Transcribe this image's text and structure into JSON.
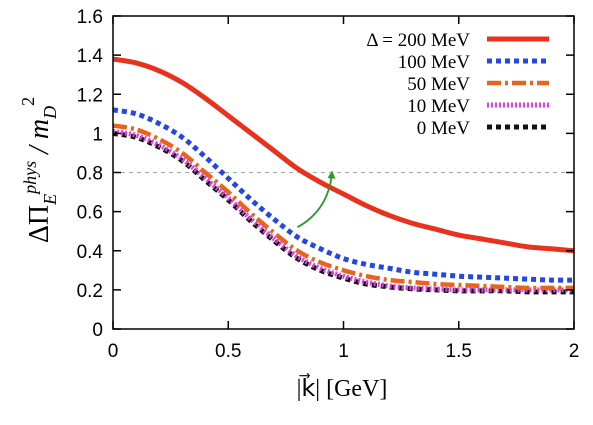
{
  "chart_data": {
    "type": "line",
    "xlabel": "|k⃗|  [GeV]",
    "ylabel": {
      "delta": "ΔΠ",
      "sub": "E",
      "sup": "phys",
      "slash": " / m",
      "sub2": "D",
      "sup2": "2"
    },
    "xlim": [
      0,
      2
    ],
    "ylim": [
      0,
      1.6
    ],
    "x_ticks": [
      "0",
      "0.5",
      "1",
      "1.5",
      "2"
    ],
    "y_ticks": [
      "0",
      "0.2",
      "0.4",
      "0.6",
      "0.8",
      "1",
      "1.2",
      "1.4",
      "1.6"
    ],
    "legend_position": "top-right",
    "reference_line": {
      "y": 0.8,
      "style": "dashed",
      "color": "#aaaaaa"
    },
    "annotation_arrow": {
      "from": [
        0.8,
        0.52
      ],
      "to": [
        0.95,
        0.8
      ],
      "color": "#2a9a2a"
    },
    "x": [
      0,
      0.1,
      0.2,
      0.3,
      0.4,
      0.5,
      0.6,
      0.7,
      0.8,
      0.9,
      1.0,
      1.1,
      1.2,
      1.3,
      1.4,
      1.5,
      1.6,
      1.7,
      1.8,
      1.9,
      2.0
    ],
    "series": [
      {
        "name": "Δ = 200 MeV",
        "color": "#e8321e",
        "dash": "solid",
        "values": [
          1.38,
          1.36,
          1.32,
          1.26,
          1.18,
          1.09,
          1.0,
          0.91,
          0.82,
          0.75,
          0.69,
          0.63,
          0.58,
          0.54,
          0.51,
          0.48,
          0.46,
          0.44,
          0.42,
          0.41,
          0.4
        ]
      },
      {
        "name": "100 MeV",
        "color": "#2346e6",
        "dash": "dotted",
        "values": [
          1.12,
          1.1,
          1.05,
          0.98,
          0.88,
          0.77,
          0.66,
          0.56,
          0.47,
          0.41,
          0.36,
          0.33,
          0.31,
          0.29,
          0.28,
          0.27,
          0.265,
          0.26,
          0.255,
          0.25,
          0.25
        ]
      },
      {
        "name": "50 MeV",
        "color": "#e8641e",
        "dash": "dashdot",
        "values": [
          1.04,
          1.02,
          0.97,
          0.9,
          0.8,
          0.7,
          0.59,
          0.49,
          0.4,
          0.34,
          0.3,
          0.27,
          0.25,
          0.24,
          0.23,
          0.225,
          0.22,
          0.215,
          0.21,
          0.21,
          0.21
        ]
      },
      {
        "name": "10 MeV",
        "color": "#e040e0",
        "dash": "fine",
        "values": [
          1.01,
          0.99,
          0.94,
          0.87,
          0.77,
          0.67,
          0.56,
          0.46,
          0.37,
          0.31,
          0.27,
          0.24,
          0.22,
          0.21,
          0.205,
          0.2,
          0.2,
          0.2,
          0.2,
          0.2,
          0.2
        ]
      },
      {
        "name": "0 MeV",
        "color": "#111111",
        "dash": "dotted",
        "values": [
          1.0,
          0.98,
          0.93,
          0.86,
          0.76,
          0.66,
          0.55,
          0.45,
          0.36,
          0.3,
          0.26,
          0.23,
          0.215,
          0.205,
          0.2,
          0.195,
          0.195,
          0.195,
          0.19,
          0.19,
          0.19
        ]
      }
    ]
  }
}
